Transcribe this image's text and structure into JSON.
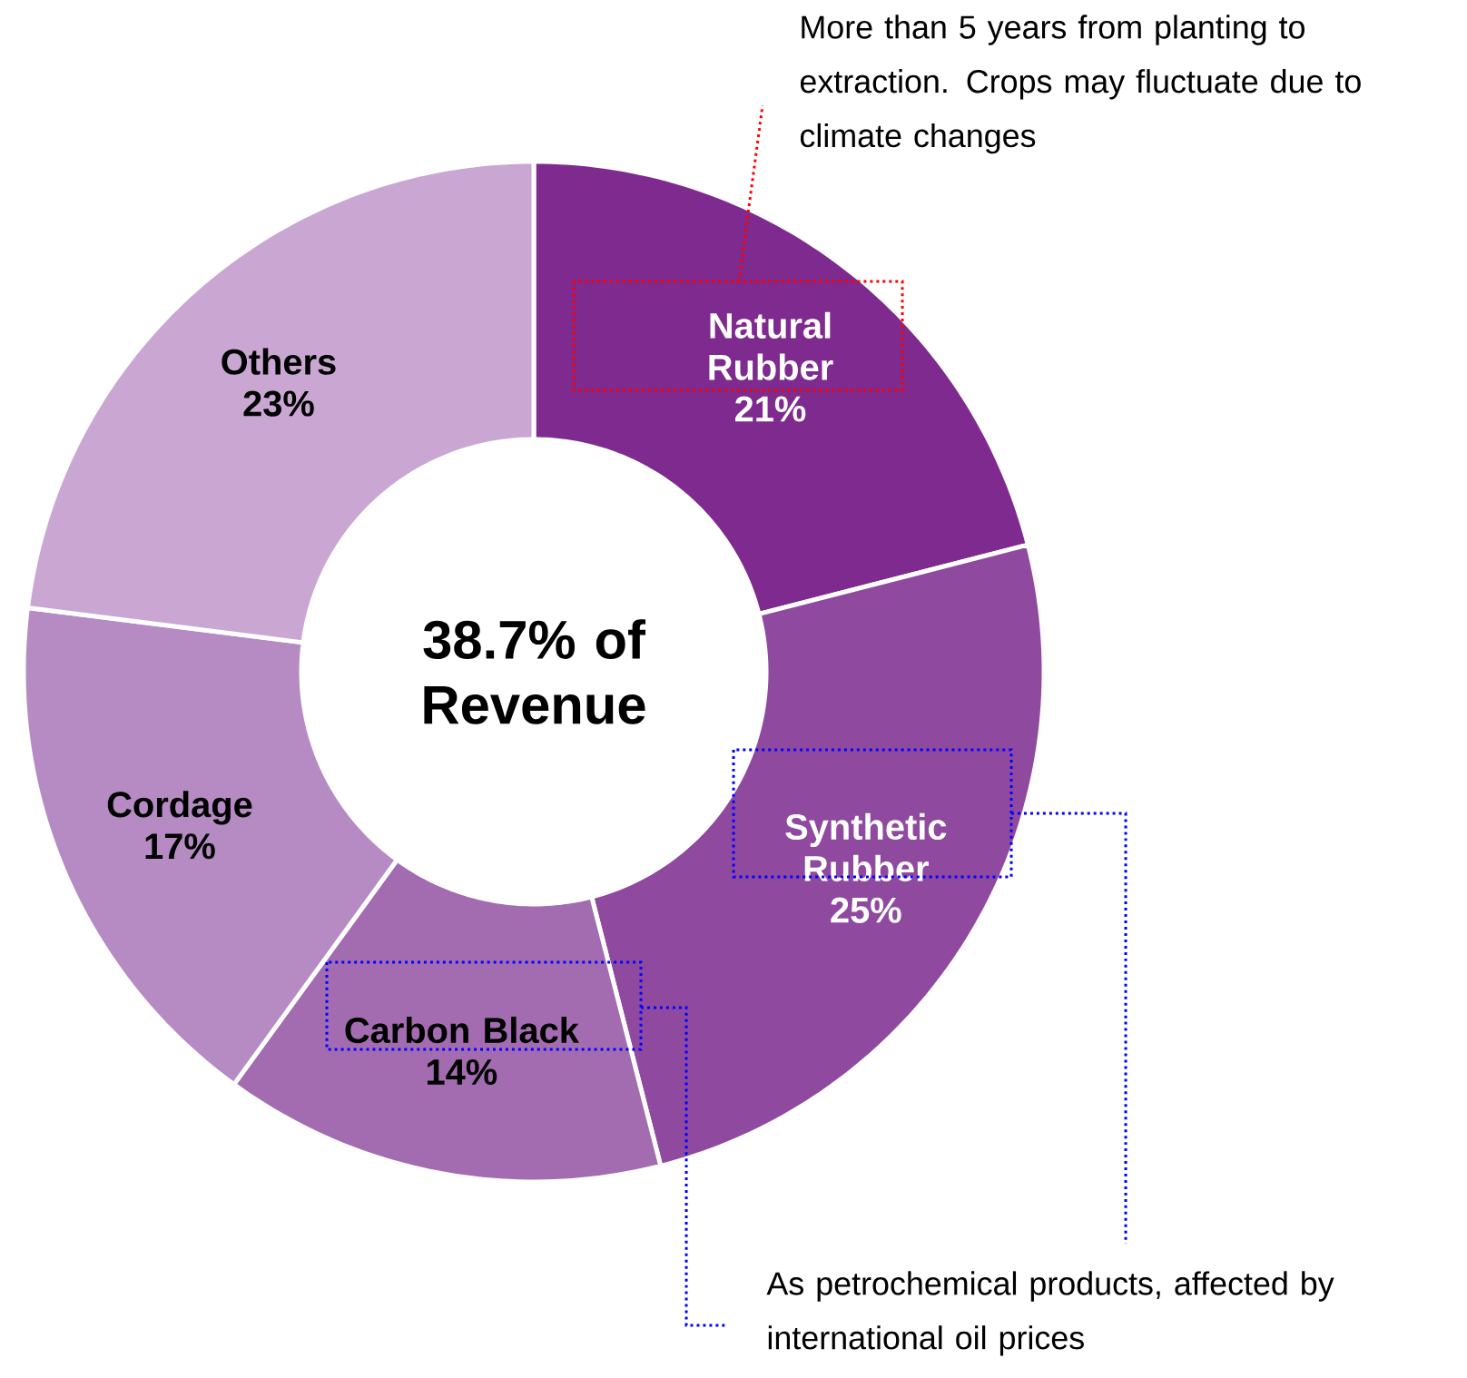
{
  "chart_data": {
    "type": "donut",
    "categories": [
      "Natural Rubber",
      "Synthetic Rubber",
      "Carbon Black",
      "Cordage",
      "Others"
    ],
    "values": [
      21,
      25,
      14,
      17,
      23
    ],
    "value_labels": [
      "21%",
      "25%",
      "14%",
      "17%",
      "23%"
    ],
    "colors": [
      "#7f2a8e",
      "#8f4a9f",
      "#a36cb0",
      "#b68bc4",
      "#caa7d3"
    ],
    "annotations": [
      "38.7% of Revenue",
      "More than 5 years from planting to extraction. Crops may fluctuate due to climate changes",
      "As petrochemical products, affected by international oil prices"
    ]
  }
}
